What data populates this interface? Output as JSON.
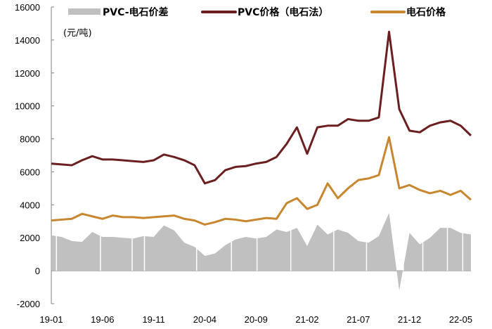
{
  "chart_data": {
    "type": "line",
    "title": "",
    "unit_label": "(元/吨)",
    "xlabel": "",
    "ylabel": "",
    "ylim": [
      -2000,
      16000
    ],
    "y_ticks": [
      16000,
      14000,
      12000,
      10000,
      8000,
      6000,
      4000,
      2000,
      0,
      -2000
    ],
    "x_tick_labels": [
      "19-01",
      "19-06",
      "19-11",
      "20-04",
      "20-09",
      "21-02",
      "21-07",
      "21-12",
      "22-05"
    ],
    "grid": false,
    "legend_position": "top",
    "legend": [
      {
        "name": "PVC-电石价差",
        "type": "area",
        "color": "#c0c0c0"
      },
      {
        "name": "PVC价格（电石法）",
        "type": "line",
        "color": "#6b1f1f"
      },
      {
        "name": "电石价格",
        "type": "line",
        "color": "#c8862e"
      }
    ],
    "x": [
      "19-01",
      "19-02",
      "19-03",
      "19-04",
      "19-05",
      "19-06",
      "19-07",
      "19-08",
      "19-09",
      "19-10",
      "19-11",
      "19-12",
      "20-01",
      "20-02",
      "20-03",
      "20-04",
      "20-05",
      "20-06",
      "20-07",
      "20-08",
      "20-09",
      "20-10",
      "20-11",
      "20-12",
      "21-01",
      "21-02",
      "21-03",
      "21-04",
      "21-05",
      "21-06",
      "21-07",
      "21-08",
      "21-09",
      "21-10",
      "21-11",
      "21-12",
      "22-01",
      "22-02",
      "22-03",
      "22-04",
      "22-05",
      "22-06"
    ],
    "series": [
      {
        "name": "PVC价格（电石法）",
        "values": [
          6500,
          6450,
          6400,
          6700,
          6950,
          6750,
          6750,
          6700,
          6650,
          6600,
          6700,
          7050,
          6900,
          6700,
          6400,
          5300,
          5500,
          6100,
          6300,
          6350,
          6500,
          6600,
          6900,
          7700,
          8700,
          7100,
          8700,
          8800,
          8800,
          9200,
          9100,
          9100,
          9300,
          14500,
          9800,
          8500,
          8400,
          8800,
          9000,
          9100,
          8800,
          8200
        ]
      },
      {
        "name": "电石价格",
        "values": [
          3050,
          3100,
          3150,
          3450,
          3300,
          3150,
          3350,
          3250,
          3250,
          3200,
          3250,
          3300,
          3350,
          3150,
          3050,
          2800,
          2950,
          3150,
          3100,
          3000,
          3100,
          3200,
          3150,
          4100,
          4400,
          3750,
          4000,
          5300,
          4400,
          5000,
          5500,
          5600,
          5800,
          8100,
          5000,
          5200,
          4900,
          4700,
          4850,
          4600,
          4850,
          4300
        ]
      },
      {
        "name": "PVC-电石价差",
        "values": [
          2150,
          2050,
          1800,
          1750,
          2350,
          2050,
          2050,
          2000,
          1950,
          2100,
          2050,
          2750,
          2450,
          1700,
          1450,
          900,
          1050,
          1550,
          1900,
          2050,
          1950,
          2050,
          2500,
          2350,
          2600,
          1500,
          2800,
          2200,
          2500,
          2300,
          1800,
          1700,
          2100,
          3500,
          -1200,
          2300,
          1600,
          2000,
          2600,
          2600,
          2300,
          2200
        ]
      }
    ]
  }
}
